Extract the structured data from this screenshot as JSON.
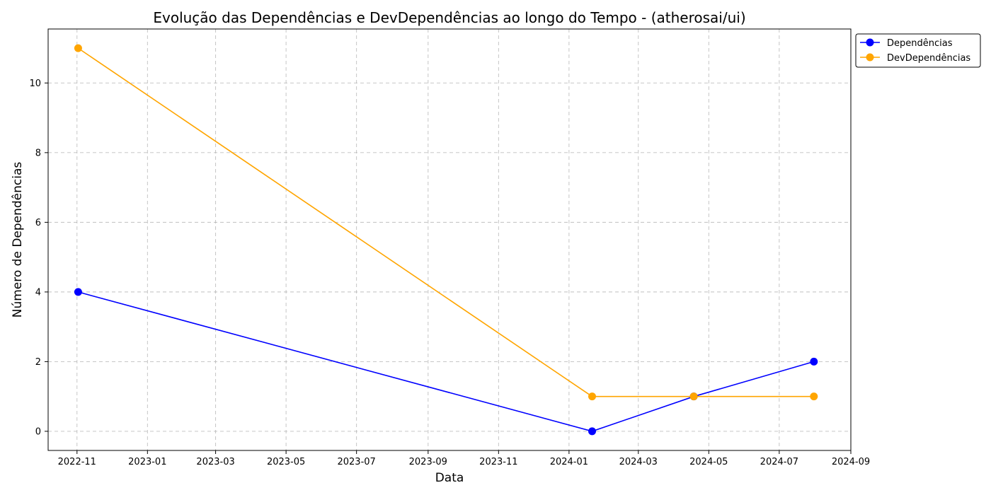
{
  "chart_data": {
    "type": "line",
    "title": "Evolução das Dependências e DevDependências ao longo do Tempo - (atherosai/ui)",
    "xlabel": "Data",
    "ylabel": "Número de Dependências",
    "x": [
      "2022-11-02",
      "2024-01-21",
      "2024-04-18",
      "2024-07-31"
    ],
    "xlim": [
      "2022-10-07",
      "2024-09-01"
    ],
    "ylim": [
      -0.55,
      11.55
    ],
    "x_ticks": [
      "2022-11",
      "2023-01",
      "2023-03",
      "2023-05",
      "2023-07",
      "2023-09",
      "2023-11",
      "2024-01",
      "2024-03",
      "2024-05",
      "2024-07",
      "2024-09"
    ],
    "y_ticks": [
      0,
      2,
      4,
      6,
      8,
      10
    ],
    "grid": true,
    "legend_position": "upper-right, outside plot area",
    "series": [
      {
        "name": "Dependências",
        "color": "#0000ff",
        "values": [
          4,
          0,
          1,
          2
        ]
      },
      {
        "name": "DevDependências",
        "color": "#ffa500",
        "values": [
          11,
          1,
          1,
          1
        ]
      }
    ]
  }
}
